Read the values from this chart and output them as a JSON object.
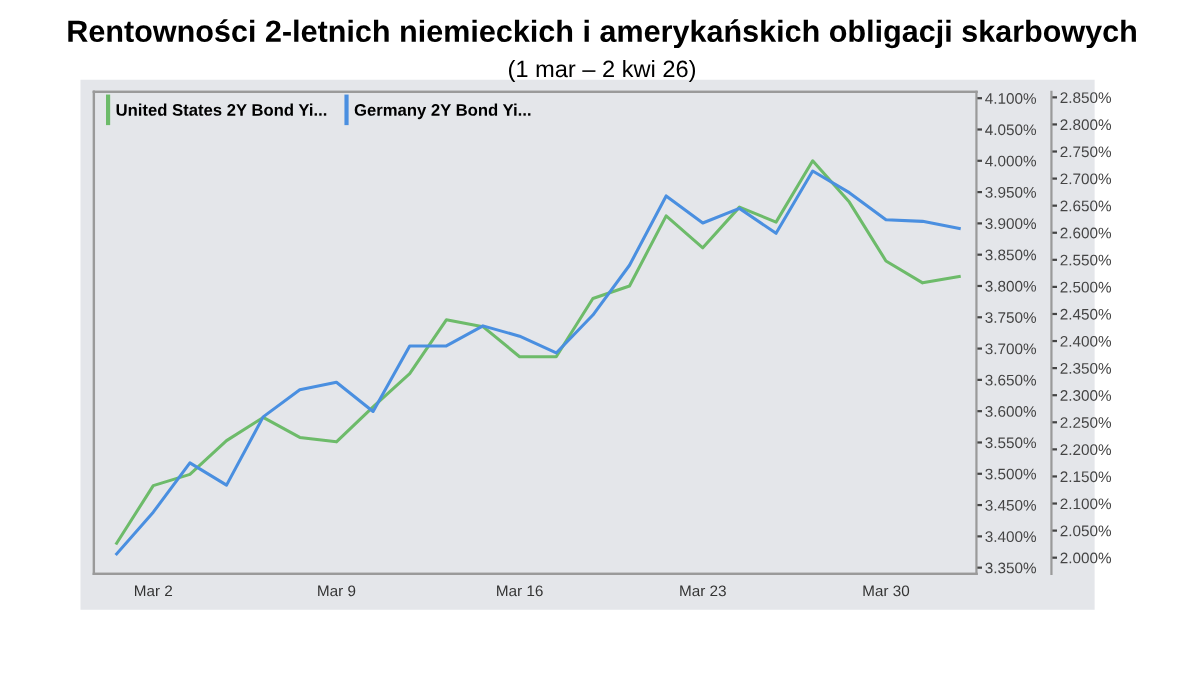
{
  "chart_data": {
    "type": "line",
    "title": "Rentowności 2-letnich niemieckich i amerykańskich obligacji skarbowych",
    "subtitle": "(1 mar – 2 kwi 26)",
    "categories": [
      null,
      "Mar 2",
      null,
      null,
      null,
      null,
      "Mar 9",
      null,
      null,
      null,
      null,
      "Mar 16",
      null,
      null,
      null,
      null,
      "Mar 23",
      null,
      null,
      null,
      null,
      "Mar 30",
      null,
      null
    ],
    "series": [
      {
        "name": "United States 2Y Bond Yi...",
        "color": "#6dbb6a",
        "values": [
          3.389,
          3.481,
          3.499,
          3.553,
          3.59,
          3.558,
          3.551,
          3.607,
          3.66,
          3.746,
          3.735,
          3.687,
          3.687,
          3.78,
          3.8,
          3.912,
          3.861,
          3.926,
          3.902,
          4.0,
          3.934,
          3.84,
          3.805,
          3.815
        ]
      },
      {
        "name": "Germany 2Y Bond Yi...",
        "color": "#4a8fe0",
        "axis": "y2",
        "values": [
          2.007,
          2.084,
          2.175,
          2.134,
          2.26,
          2.31,
          2.324,
          2.27,
          2.391,
          2.391,
          2.428,
          2.409,
          2.378,
          2.448,
          2.54,
          2.668,
          2.618,
          2.645,
          2.599,
          2.714,
          2.674,
          2.624,
          2.621,
          2.608
        ]
      }
    ],
    "ylim": [
      3.34,
      4.11
    ],
    "yticks": [
      {
        "value": 3.35,
        "label": "3.350%"
      },
      {
        "value": 3.4,
        "label": "3.400%"
      },
      {
        "value": 3.45,
        "label": "3.450%"
      },
      {
        "value": 3.5,
        "label": "3.500%"
      },
      {
        "value": 3.55,
        "label": "3.550%"
      },
      {
        "value": 3.6,
        "label": "3.600%"
      },
      {
        "value": 3.65,
        "label": "3.650%"
      },
      {
        "value": 3.7,
        "label": "3.700%"
      },
      {
        "value": 3.75,
        "label": "3.750%"
      },
      {
        "value": 3.8,
        "label": "3.800%"
      },
      {
        "value": 3.85,
        "label": "3.850%"
      },
      {
        "value": 3.9,
        "label": "3.900%"
      },
      {
        "value": 3.95,
        "label": "3.950%"
      },
      {
        "value": 4.0,
        "label": "4.000%"
      },
      {
        "value": 4.05,
        "label": "4.050%"
      },
      {
        "value": 4.1,
        "label": "4.100%"
      }
    ],
    "y2lim": [
      1.97,
      2.86
    ],
    "y2ticks": [
      {
        "value": 2.0,
        "label": "2.000%"
      },
      {
        "value": 2.05,
        "label": "2.050%"
      },
      {
        "value": 2.1,
        "label": "2.100%"
      },
      {
        "value": 2.15,
        "label": "2.150%"
      },
      {
        "value": 2.2,
        "label": "2.200%"
      },
      {
        "value": 2.25,
        "label": "2.250%"
      },
      {
        "value": 2.3,
        "label": "2.300%"
      },
      {
        "value": 2.35,
        "label": "2.350%"
      },
      {
        "value": 2.4,
        "label": "2.400%"
      },
      {
        "value": 2.45,
        "label": "2.450%"
      },
      {
        "value": 2.5,
        "label": "2.500%"
      },
      {
        "value": 2.55,
        "label": "2.550%"
      },
      {
        "value": 2.6,
        "label": "2.600%"
      },
      {
        "value": 2.65,
        "label": "2.650%"
      },
      {
        "value": 2.7,
        "label": "2.700%"
      },
      {
        "value": 2.75,
        "label": "2.750%"
      },
      {
        "value": 2.8,
        "label": "2.800%"
      },
      {
        "value": 2.85,
        "label": "2.850%"
      }
    ],
    "grid": false,
    "legend": "top left",
    "marker": "none",
    "line_style": "solid"
  }
}
